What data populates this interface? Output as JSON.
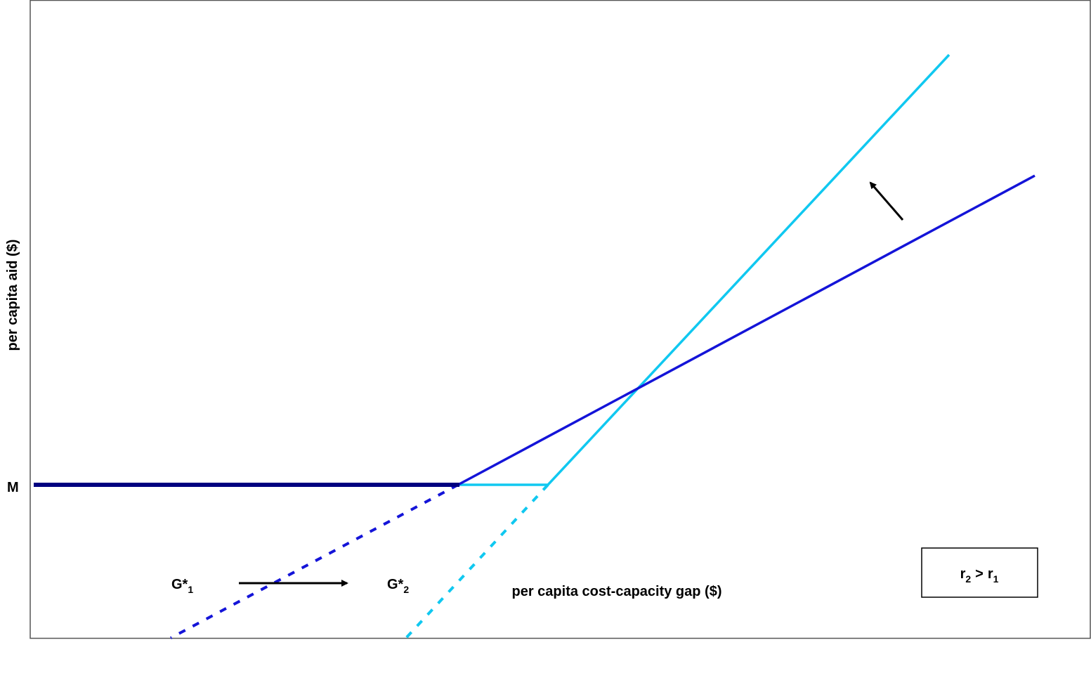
{
  "axes": {
    "y_label": "per capita aid ($)",
    "x_label": "per capita cost-capacity gap ($)"
  },
  "labels": {
    "m": "M",
    "g1": {
      "base": "G*",
      "sub": "1"
    },
    "g2": {
      "base": "G*",
      "sub": "2"
    }
  },
  "legend_box": {
    "a": "r",
    "a_sub": "2",
    "op": ">",
    "b": "r",
    "b_sub": "1"
  }
}
